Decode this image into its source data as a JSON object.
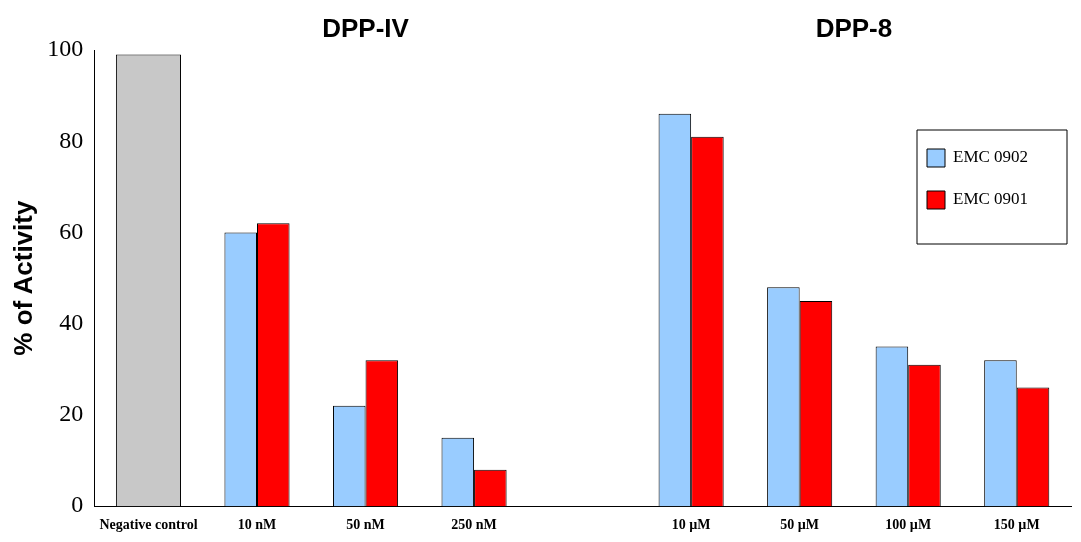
{
  "chart_data": {
    "type": "bar",
    "ylabel": "% of Activity",
    "categories": [
      "Negative control",
      "10 nM",
      "50 nM",
      "250 nM",
      null,
      "10 µM",
      "50 µM",
      "100 µM",
      "150 µM"
    ],
    "series": [
      {
        "color": "#c8c8c8",
        "values": [
          99,
          null,
          null,
          null,
          null,
          null,
          null,
          null,
          null
        ]
      },
      {
        "name": "EMC 0902",
        "color": "#99ccff",
        "values": [
          null,
          60,
          22,
          15,
          null,
          86,
          48,
          35,
          32
        ]
      },
      {
        "name": "EMC 0901",
        "color": "#ff0000",
        "values": [
          null,
          62,
          32,
          8,
          null,
          81,
          45,
          31,
          26
        ]
      }
    ],
    "annotations": [
      "DPP-IV",
      "DPP-8"
    ],
    "ylim": [
      0,
      100
    ],
    "yticks": [
      0,
      20,
      40,
      60,
      80,
      100
    ],
    "grid": false,
    "legend": "top right"
  }
}
